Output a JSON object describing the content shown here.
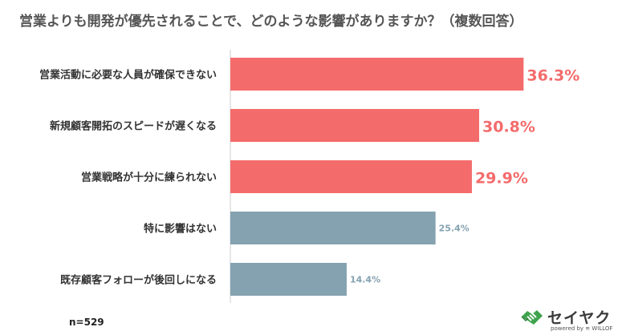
{
  "title": "営業よりも開発が優先されることで、どのような影響がありますか？（複数回答）",
  "chart_data": {
    "type": "bar",
    "orientation": "horizontal",
    "categories": [
      "営業活動に必要な人員が確保できない",
      "新規顧客開拓のスピードが遅くなる",
      "営業戦略が十分に練られない",
      "特に影響はない",
      "既存顧客フォローが後回しになる"
    ],
    "values": [
      36.3,
      30.8,
      29.9,
      25.4,
      14.4
    ],
    "value_labels": [
      "36.3%",
      "30.8%",
      "29.9%",
      "25.4%",
      "14.4%"
    ],
    "highlighted_count": 3,
    "xlim": [
      0,
      46
    ],
    "grid": false,
    "colors": {
      "highlight": "#f46b6b",
      "normal": "#84a2b0",
      "axis": "#cccccc"
    }
  },
  "sample_size": "n=529",
  "brand": {
    "name": "セイヤク",
    "powered_by": "powered by ≋ WILLOF",
    "logo_icon": "handshake-icon",
    "icon_color": "#3fa34d"
  }
}
